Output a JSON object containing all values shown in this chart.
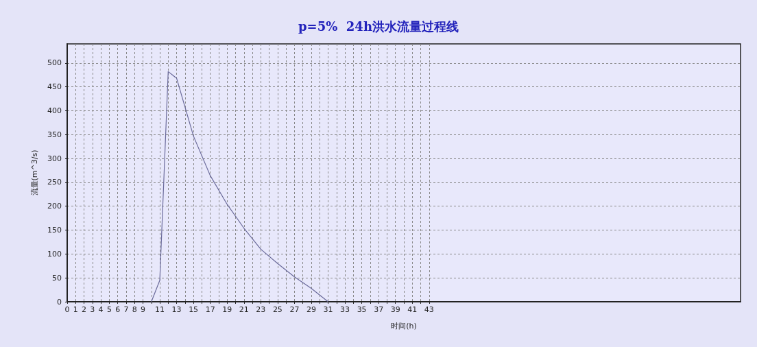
{
  "chart_data": {
    "type": "line",
    "title": "p=5%  24h洪水流量过程线",
    "xlabel": "时间(h)",
    "ylabel": "流量(m^3/s)",
    "x": [
      10,
      11,
      12,
      13,
      15,
      17,
      19,
      21,
      23,
      25,
      27,
      29,
      31
    ],
    "series": [
      {
        "color": "#6a6a9a",
        "values": [
          0,
          45,
          482,
          468,
          347,
          264,
          204,
          154,
          110,
          80,
          52,
          28,
          0
        ]
      }
    ],
    "xlim": [
      0,
      80
    ],
    "xticks": [
      0,
      1,
      2,
      3,
      4,
      5,
      6,
      7,
      8,
      9,
      {
        "value": 10,
        "label": null
      },
      11,
      {
        "value": 12,
        "label": null
      },
      13,
      {
        "value": 14,
        "label": null
      },
      15,
      {
        "value": 16,
        "label": null
      },
      17,
      {
        "value": 18,
        "label": null
      },
      19,
      {
        "value": 20,
        "label": null
      },
      21,
      {
        "value": 22,
        "label": null
      },
      23,
      {
        "value": 24,
        "label": null
      },
      25,
      {
        "value": 26,
        "label": null
      },
      27,
      {
        "value": 28,
        "label": null
      },
      29,
      {
        "value": 30,
        "label": null
      },
      31,
      {
        "value": 32,
        "label": null
      },
      33,
      {
        "value": 34,
        "label": null
      },
      35,
      {
        "value": 36,
        "label": null
      },
      37,
      {
        "value": 38,
        "label": null
      },
      39,
      {
        "value": 40,
        "label": null
      },
      41,
      {
        "value": 42,
        "label": null
      },
      43
    ],
    "ylim": [
      0,
      540
    ],
    "yticks": [
      0,
      50,
      100,
      150,
      200,
      250,
      300,
      350,
      400,
      450,
      500
    ],
    "grid": true,
    "marker": "none",
    "line_style": "solid"
  }
}
